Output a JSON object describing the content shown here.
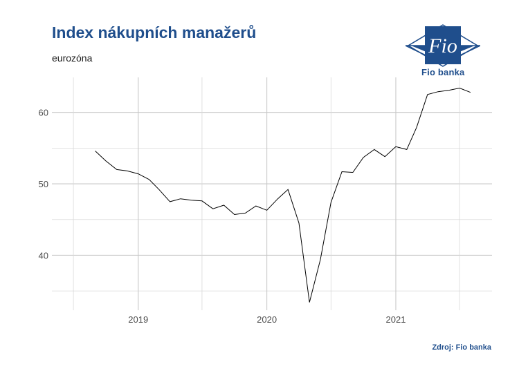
{
  "header": {
    "title": "Index nákupních manažerů",
    "subtitle": "eurozóna"
  },
  "logo": {
    "brand_text": "Fio",
    "bank_text": "Fio banka",
    "brand_color": "#1f4e8c"
  },
  "footer": {
    "source": "Zdroj: Fio banka"
  },
  "chart_data": {
    "type": "line",
    "title": "Index nákupních manažerů",
    "subtitle": "eurozóna",
    "xlabel": "",
    "ylabel": "",
    "x_tick_labels": [
      "2019",
      "2020",
      "2021"
    ],
    "y_tick_labels": [
      "40",
      "50",
      "60"
    ],
    "ylim": [
      32.3,
      64.9
    ],
    "grid": true,
    "line_color": "#000000",
    "series": [
      {
        "x": [
          "2018-09",
          "2018-10",
          "2018-11",
          "2018-12",
          "2019-01",
          "2019-02",
          "2019-03",
          "2019-04",
          "2019-05",
          "2019-06",
          "2019-07",
          "2019-08",
          "2019-09",
          "2019-10",
          "2019-11",
          "2019-12",
          "2020-01",
          "2020-02",
          "2020-03",
          "2020-04",
          "2020-05",
          "2020-06",
          "2020-07",
          "2020-08",
          "2020-09",
          "2020-10",
          "2020-11",
          "2020-12",
          "2021-01",
          "2021-02",
          "2021-03",
          "2021-04",
          "2021-05",
          "2021-06",
          "2021-07",
          "2021-08"
        ],
        "values": [
          54.6,
          53.2,
          52.0,
          51.8,
          51.4,
          50.6,
          49.2,
          47.5,
          47.9,
          47.7,
          47.6,
          46.5,
          47.0,
          45.7,
          45.9,
          46.9,
          46.3,
          47.9,
          49.2,
          44.5,
          33.4,
          39.4,
          47.4,
          51.7,
          51.6,
          53.7,
          54.8,
          53.8,
          55.2,
          54.8,
          57.9,
          62.5,
          62.9,
          63.1,
          63.4,
          62.8
        ]
      }
    ]
  }
}
